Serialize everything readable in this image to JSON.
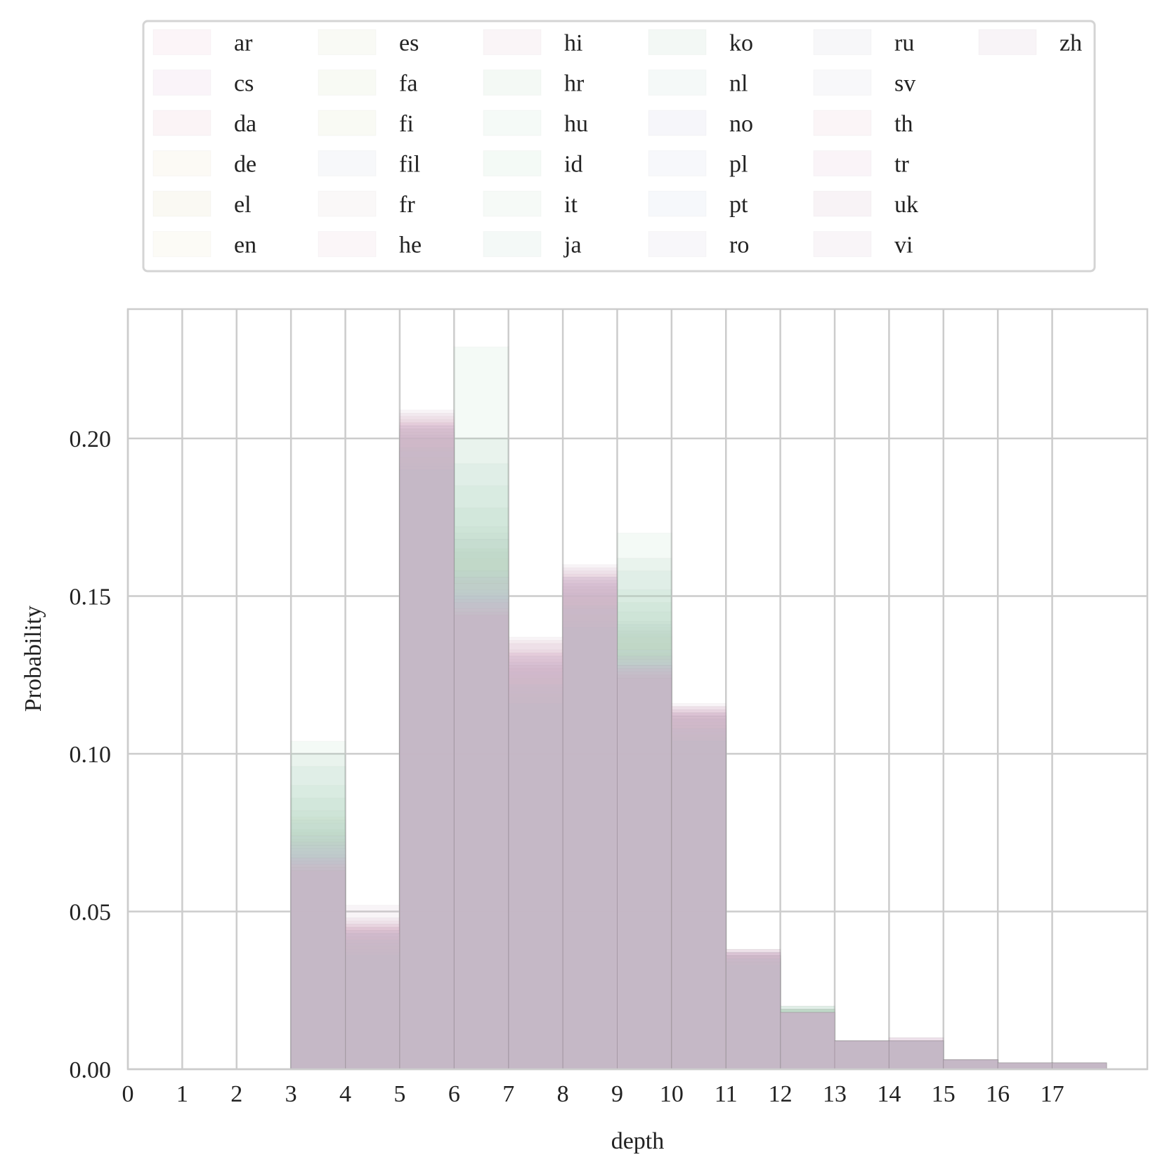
{
  "chart_data": {
    "type": "bar",
    "xlabel": "depth",
    "ylabel": "Probability",
    "ylim": [
      0,
      0.241
    ],
    "xlim": [
      0,
      18.75
    ],
    "x_ticks": [
      "0",
      "1",
      "2",
      "3",
      "4",
      "5",
      "6",
      "7",
      "8",
      "9",
      "10",
      "11",
      "12",
      "13",
      "14",
      "15",
      "16",
      "17"
    ],
    "y_ticks": [
      "0.00",
      "0.05",
      "0.10",
      "0.15",
      "0.20"
    ],
    "grid": true,
    "legend_placement": "top",
    "legend_columns": 6,
    "bin_edges": [
      3,
      4,
      5,
      6,
      7,
      8,
      9,
      10,
      11,
      12,
      13,
      14,
      15,
      16,
      17,
      18
    ],
    "series": [
      {
        "name": "ar",
        "color": "#e8b4c8",
        "values": [
          0.062,
          0.04,
          0.198,
          0.142,
          0.128,
          0.15,
          0.128,
          0.112,
          0.035,
          0.018,
          0.009,
          0.009,
          0.003,
          0.002,
          0.002
        ]
      },
      {
        "name": "cs",
        "color": "#d8a8d0",
        "values": [
          0.07,
          0.045,
          0.205,
          0.15,
          0.132,
          0.156,
          0.126,
          0.114,
          0.037,
          0.018,
          0.009,
          0.01,
          0.003,
          0.002,
          0.002
        ]
      },
      {
        "name": "da",
        "color": "#e0a8b8",
        "values": [
          0.068,
          0.042,
          0.207,
          0.148,
          0.136,
          0.154,
          0.128,
          0.113,
          0.036,
          0.018,
          0.009,
          0.009,
          0.003,
          0.002,
          0.002
        ]
      },
      {
        "name": "de",
        "color": "#e8d8b0",
        "values": [
          0.072,
          0.043,
          0.202,
          0.152,
          0.127,
          0.152,
          0.13,
          0.112,
          0.036,
          0.018,
          0.009,
          0.009,
          0.003,
          0.002,
          0.002
        ]
      },
      {
        "name": "el",
        "color": "#d8d0a0",
        "values": [
          0.066,
          0.041,
          0.203,
          0.155,
          0.125,
          0.151,
          0.132,
          0.111,
          0.035,
          0.019,
          0.009,
          0.009,
          0.003,
          0.002,
          0.002
        ]
      },
      {
        "name": "en",
        "color": "#e8e0b8",
        "values": [
          0.074,
          0.044,
          0.2,
          0.158,
          0.124,
          0.15,
          0.135,
          0.11,
          0.036,
          0.018,
          0.009,
          0.009,
          0.003,
          0.002,
          0.002
        ]
      },
      {
        "name": "es",
        "color": "#d0d8b0",
        "values": [
          0.076,
          0.041,
          0.199,
          0.162,
          0.122,
          0.148,
          0.138,
          0.109,
          0.035,
          0.019,
          0.009,
          0.009,
          0.003,
          0.002,
          0.002
        ]
      },
      {
        "name": "fa",
        "color": "#c8d8a8",
        "values": [
          0.08,
          0.04,
          0.197,
          0.168,
          0.121,
          0.147,
          0.14,
          0.108,
          0.035,
          0.019,
          0.009,
          0.009,
          0.003,
          0.002,
          0.002
        ]
      },
      {
        "name": "fi",
        "color": "#d0d8a8",
        "values": [
          0.073,
          0.042,
          0.2,
          0.165,
          0.123,
          0.149,
          0.137,
          0.109,
          0.036,
          0.018,
          0.009,
          0.009,
          0.003,
          0.002,
          0.002
        ]
      },
      {
        "name": "fil",
        "color": "#c0c8d8",
        "values": [
          0.078,
          0.043,
          0.196,
          0.17,
          0.121,
          0.146,
          0.142,
          0.108,
          0.035,
          0.019,
          0.009,
          0.009,
          0.003,
          0.002,
          0.002
        ]
      },
      {
        "name": "fr",
        "color": "#d8c8c8",
        "values": [
          0.075,
          0.044,
          0.198,
          0.164,
          0.124,
          0.148,
          0.139,
          0.109,
          0.036,
          0.018,
          0.009,
          0.009,
          0.003,
          0.002,
          0.002
        ]
      },
      {
        "name": "he",
        "color": "#e0b8c8",
        "values": [
          0.069,
          0.046,
          0.204,
          0.15,
          0.13,
          0.155,
          0.128,
          0.113,
          0.037,
          0.018,
          0.009,
          0.009,
          0.003,
          0.002,
          0.002
        ]
      },
      {
        "name": "hi",
        "color": "#d8b0c0",
        "values": [
          0.071,
          0.045,
          0.201,
          0.156,
          0.128,
          0.153,
          0.131,
          0.112,
          0.036,
          0.018,
          0.009,
          0.009,
          0.003,
          0.002,
          0.002
        ]
      },
      {
        "name": "hr",
        "color": "#a8d0b0",
        "values": [
          0.086,
          0.039,
          0.194,
          0.178,
          0.119,
          0.144,
          0.148,
          0.106,
          0.034,
          0.019,
          0.009,
          0.009,
          0.003,
          0.002,
          0.002
        ]
      },
      {
        "name": "hu",
        "color": "#b0d8c0",
        "values": [
          0.09,
          0.038,
          0.192,
          0.185,
          0.118,
          0.142,
          0.152,
          0.105,
          0.034,
          0.019,
          0.009,
          0.009,
          0.003,
          0.002,
          0.002
        ]
      },
      {
        "name": "id",
        "color": "#a8d8b8",
        "values": [
          0.104,
          0.037,
          0.19,
          0.229,
          0.116,
          0.14,
          0.17,
          0.104,
          0.034,
          0.02,
          0.009,
          0.009,
          0.003,
          0.002,
          0.002
        ]
      },
      {
        "name": "it",
        "color": "#b8d8c0",
        "values": [
          0.082,
          0.04,
          0.196,
          0.172,
          0.12,
          0.146,
          0.145,
          0.107,
          0.035,
          0.019,
          0.009,
          0.009,
          0.003,
          0.002,
          0.002
        ]
      },
      {
        "name": "ja",
        "color": "#a8d0c0",
        "values": [
          0.096,
          0.037,
          0.191,
          0.192,
          0.117,
          0.141,
          0.158,
          0.105,
          0.034,
          0.02,
          0.009,
          0.009,
          0.003,
          0.002,
          0.002
        ]
      },
      {
        "name": "ko",
        "color": "#a0c8b0",
        "values": [
          0.1,
          0.036,
          0.19,
          0.2,
          0.116,
          0.14,
          0.162,
          0.104,
          0.033,
          0.02,
          0.009,
          0.009,
          0.003,
          0.002,
          0.002
        ]
      },
      {
        "name": "nl",
        "color": "#b0d0c8",
        "values": [
          0.079,
          0.041,
          0.197,
          0.168,
          0.122,
          0.147,
          0.141,
          0.108,
          0.035,
          0.019,
          0.009,
          0.009,
          0.003,
          0.002,
          0.002
        ]
      },
      {
        "name": "no",
        "color": "#b8b8d8",
        "values": [
          0.067,
          0.044,
          0.204,
          0.15,
          0.131,
          0.156,
          0.127,
          0.113,
          0.037,
          0.018,
          0.009,
          0.009,
          0.003,
          0.002,
          0.002
        ]
      },
      {
        "name": "pl",
        "color": "#c0c8e0",
        "values": [
          0.07,
          0.043,
          0.203,
          0.152,
          0.129,
          0.154,
          0.129,
          0.112,
          0.036,
          0.018,
          0.009,
          0.009,
          0.003,
          0.002,
          0.002
        ]
      },
      {
        "name": "pt",
        "color": "#b8c8e0",
        "values": [
          0.074,
          0.042,
          0.2,
          0.158,
          0.126,
          0.151,
          0.133,
          0.111,
          0.036,
          0.018,
          0.009,
          0.009,
          0.003,
          0.002,
          0.002
        ]
      },
      {
        "name": "ro",
        "color": "#c8c0d8",
        "values": [
          0.072,
          0.043,
          0.201,
          0.156,
          0.127,
          0.152,
          0.131,
          0.111,
          0.036,
          0.018,
          0.009,
          0.009,
          0.003,
          0.002,
          0.002
        ]
      },
      {
        "name": "ru",
        "color": "#c0c0d0",
        "values": [
          0.068,
          0.044,
          0.203,
          0.151,
          0.129,
          0.155,
          0.128,
          0.112,
          0.037,
          0.018,
          0.009,
          0.009,
          0.003,
          0.002,
          0.002
        ]
      },
      {
        "name": "sv",
        "color": "#c8c8d8",
        "values": [
          0.071,
          0.043,
          0.202,
          0.154,
          0.128,
          0.153,
          0.13,
          0.112,
          0.036,
          0.018,
          0.009,
          0.009,
          0.003,
          0.002,
          0.002
        ]
      },
      {
        "name": "th",
        "color": "#e0b0c0",
        "values": [
          0.065,
          0.047,
          0.206,
          0.146,
          0.133,
          0.158,
          0.126,
          0.115,
          0.038,
          0.018,
          0.009,
          0.009,
          0.003,
          0.002,
          0.002
        ]
      },
      {
        "name": "tr",
        "color": "#d8a8c8",
        "values": [
          0.067,
          0.046,
          0.205,
          0.148,
          0.132,
          0.157,
          0.127,
          0.114,
          0.037,
          0.018,
          0.009,
          0.009,
          0.003,
          0.002,
          0.002
        ]
      },
      {
        "name": "uk",
        "color": "#c8a0b8",
        "values": [
          0.063,
          0.048,
          0.208,
          0.144,
          0.135,
          0.159,
          0.125,
          0.115,
          0.038,
          0.018,
          0.009,
          0.01,
          0.003,
          0.002,
          0.002
        ]
      },
      {
        "name": "vi",
        "color": "#d0b0c8",
        "values": [
          0.066,
          0.045,
          0.204,
          0.149,
          0.131,
          0.156,
          0.128,
          0.113,
          0.037,
          0.018,
          0.009,
          0.009,
          0.003,
          0.002,
          0.002
        ]
      },
      {
        "name": "zh",
        "color": "#c8a8c0",
        "values": [
          0.064,
          0.052,
          0.209,
          0.145,
          0.137,
          0.16,
          0.124,
          0.116,
          0.038,
          0.018,
          0.009,
          0.01,
          0.003,
          0.002,
          0.002
        ]
      }
    ]
  }
}
